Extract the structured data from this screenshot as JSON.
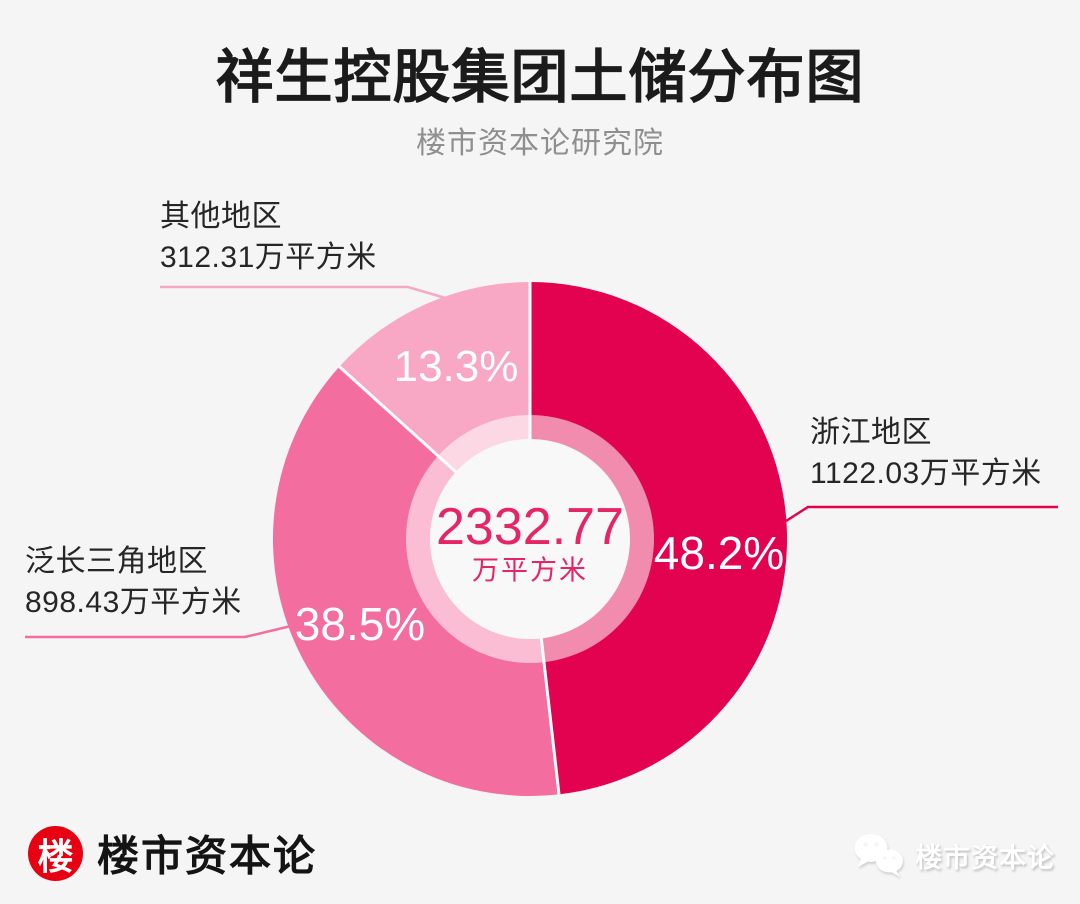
{
  "header": {
    "title": "祥生控股集团土储分布图",
    "subtitle": "楼市资本论研究院"
  },
  "chart_data": {
    "type": "pie",
    "subtype": "donut",
    "title": "祥生控股集团土储分布图",
    "source": "楼市资本论研究院",
    "unit": "万平方米",
    "center_total": "2332.77",
    "center_unit": "万平方米",
    "start_angle_deg": 0,
    "direction": "clockwise",
    "legend_position": "callout-labels",
    "segments": [
      {
        "name": "浙江地区",
        "value": 1122.03,
        "area_label": "1122.03万平方米",
        "percent": 48.2,
        "percent_label": "48.2%",
        "color": "#e2024f"
      },
      {
        "name": "泛长三角地区",
        "value": 898.43,
        "area_label": "898.43万平方米",
        "percent": 38.5,
        "percent_label": "38.5%",
        "color": "#f36d9f"
      },
      {
        "name": "其他地区",
        "value": 312.31,
        "area_label": "312.31万平方米",
        "percent": 13.3,
        "percent_label": "13.3%",
        "color": "#f8a7c4"
      }
    ]
  },
  "footer": {
    "logo_char": "楼",
    "brand": "楼市资本论",
    "watermark": "楼市资本论",
    "logo_color": "#e60012"
  },
  "colors": {
    "background": "#f5f5f6",
    "title_text": "#1b1b1b",
    "subtitle_text": "#8f8f8f",
    "center_text": "#e52564",
    "donut_hole": "#f8f8f9"
  },
  "icons": {
    "wechat_icon": "wechat-chat-bubbles",
    "logo_icon": "lou-character-circle"
  }
}
